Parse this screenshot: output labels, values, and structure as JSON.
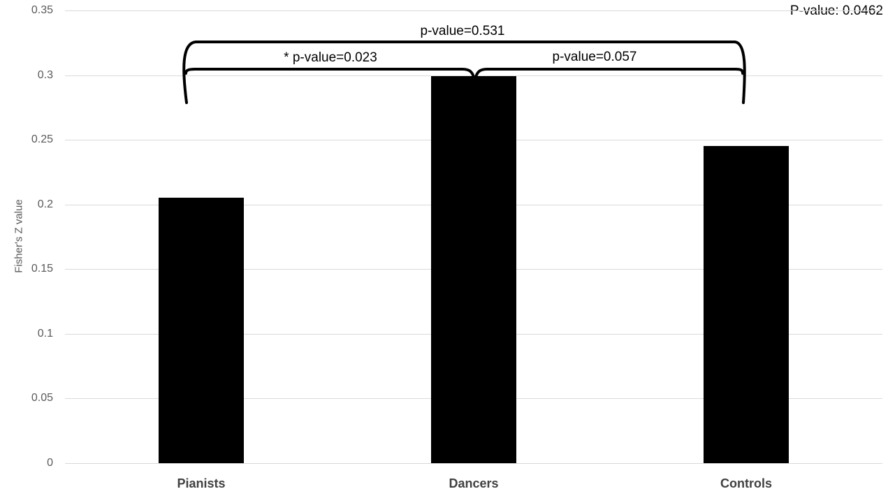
{
  "chart_data": {
    "type": "bar",
    "title": "",
    "xlabel": "",
    "ylabel": "Fisher's Z value",
    "categories": [
      "Pianists",
      "Dancers",
      "Controls"
    ],
    "values": [
      0.205,
      0.299,
      0.245
    ],
    "ylim": [
      0,
      0.35
    ],
    "yticks": [
      0,
      0.05,
      0.1,
      0.15,
      0.2,
      0.25,
      0.3,
      0.35
    ],
    "ytick_labels": [
      "0",
      "0.05",
      "0.1",
      "0.15",
      "0.2",
      "0.25",
      "0.3",
      "0.35"
    ],
    "grid": "horizontal",
    "legend_position": "none",
    "bar_color": "#000000",
    "gridline_color": "#d9d9d9",
    "tick_label_color": "#595959",
    "category_label_color": "#404040",
    "annotation_color": "#000000",
    "overall_note": "P-value: 0.0462",
    "comparisons": [
      {
        "groups": [
          "Pianists",
          "Dancers"
        ],
        "label": "* p-value=0.023",
        "p": 0.023
      },
      {
        "groups": [
          "Dancers",
          "Controls"
        ],
        "label": "p-value=0.057",
        "p": 0.057
      },
      {
        "groups": [
          "Pianists",
          "Controls"
        ],
        "label": "p-value=0.531",
        "p": 0.531
      }
    ]
  }
}
